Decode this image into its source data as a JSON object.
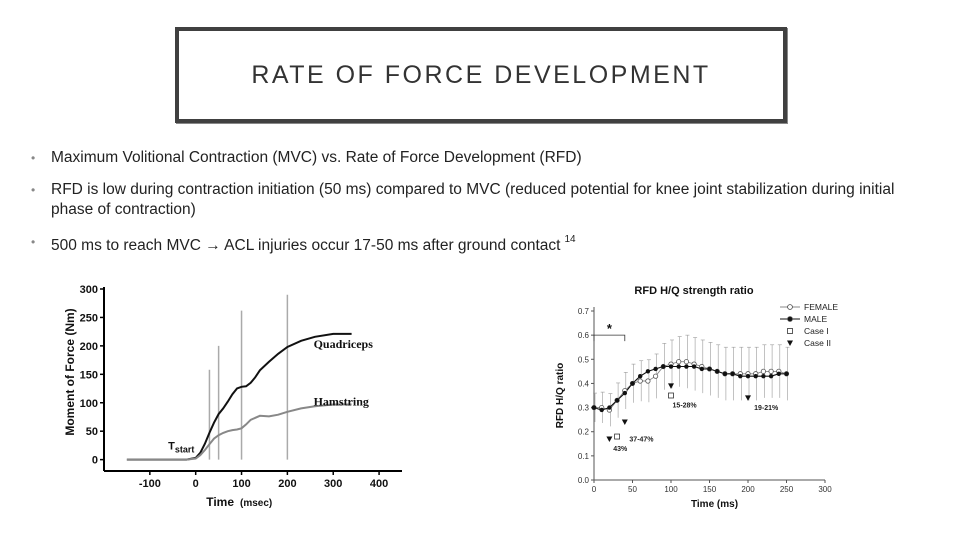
{
  "slide": {
    "title": "RATE OF FORCE DEVELOPMENT",
    "bullets": [
      {
        "text": "Maximum Volitional Contraction (MVC) vs. Rate of Force Development (RFD)"
      },
      {
        "text": "RFD is low during contraction initiation (50 ms) compared to MVC (reduced potential for knee joint stabilization during initial phase of contraction)"
      },
      {
        "text_before": "500 ms to reach MVC",
        "arrow": "→",
        "text_after": "ACL injuries occur 17-50 ms after ground contact",
        "superscript": "14"
      }
    ],
    "bullet_marker": "•"
  },
  "chart_data": [
    {
      "type": "line",
      "title": "",
      "xlabel": "Time",
      "xlabel_unit": "(msec)",
      "ylabel": "Moment of Force (Nm)",
      "xlim": [
        -200,
        450
      ],
      "ylim": [
        -20,
        300
      ],
      "xticks": [
        -100,
        0,
        100,
        200,
        300,
        400
      ],
      "yticks": [
        0,
        50,
        100,
        150,
        200,
        250,
        300
      ],
      "vertical_markers": [
        30,
        50,
        100,
        200
      ],
      "annotation": {
        "text": "T",
        "subscript": "start",
        "x": -60,
        "y": 18
      },
      "series": [
        {
          "name": "Quadriceps",
          "x": [
            -150,
            -20,
            0,
            10,
            20,
            30,
            40,
            50,
            60,
            70,
            80,
            90,
            100,
            110,
            120,
            130,
            140,
            160,
            180,
            200,
            230,
            260,
            300,
            340
          ],
          "y": [
            0,
            0,
            3,
            12,
            28,
            47,
            65,
            80,
            90,
            102,
            115,
            125,
            128,
            129,
            135,
            145,
            157,
            172,
            186,
            198,
            209,
            216,
            221,
            221
          ]
        },
        {
          "name": "Hamstring",
          "x": [
            -150,
            -20,
            0,
            10,
            20,
            30,
            40,
            50,
            60,
            70,
            80,
            90,
            100,
            110,
            120,
            140,
            160,
            180,
            200,
            230,
            260,
            300,
            340
          ],
          "y": [
            0,
            0,
            2,
            8,
            17,
            27,
            37,
            43,
            47,
            50,
            52,
            53,
            55,
            62,
            70,
            77,
            76,
            79,
            84,
            90,
            94,
            97,
            97
          ]
        }
      ]
    },
    {
      "type": "line",
      "title": "RFD H/Q strength ratio",
      "xlabel": "Time (ms)",
      "ylabel": "RFD H/Q ratio",
      "xlim": [
        0,
        300
      ],
      "ylim": [
        0,
        0.7
      ],
      "xticks": [
        0,
        50,
        100,
        150,
        200,
        250,
        300
      ],
      "yticks": [
        0.0,
        0.1,
        0.2,
        0.3,
        0.4,
        0.5,
        0.6,
        0.7
      ],
      "legend": [
        "FEMALE",
        "MALE",
        "Case I",
        "Case II"
      ],
      "legend_position": "top-right",
      "significance": {
        "text": "*",
        "x_range": [
          0,
          40
        ],
        "y": 0.6
      },
      "series": [
        {
          "name": "FEMALE",
          "marker": "open-circle",
          "x": [
            0,
            10,
            20,
            30,
            40,
            50,
            60,
            70,
            80,
            90,
            100,
            110,
            120,
            130,
            140,
            150,
            160,
            170,
            180,
            190,
            200,
            210,
            220,
            230,
            240,
            250
          ],
          "y": [
            0.3,
            0.3,
            0.29,
            0.33,
            0.37,
            0.4,
            0.41,
            0.41,
            0.43,
            0.47,
            0.48,
            0.49,
            0.49,
            0.48,
            0.47,
            0.46,
            0.45,
            0.44,
            0.44,
            0.44,
            0.44,
            0.44,
            0.45,
            0.45,
            0.45,
            0.44
          ]
        },
        {
          "name": "MALE",
          "marker": "filled-circle",
          "x": [
            0,
            10,
            20,
            30,
            40,
            50,
            60,
            70,
            80,
            90,
            100,
            110,
            120,
            130,
            140,
            150,
            160,
            170,
            180,
            190,
            200,
            210,
            220,
            230,
            240,
            250
          ],
          "y": [
            0.3,
            0.29,
            0.3,
            0.33,
            0.36,
            0.4,
            0.43,
            0.45,
            0.46,
            0.47,
            0.47,
            0.47,
            0.47,
            0.47,
            0.46,
            0.46,
            0.45,
            0.44,
            0.44,
            0.43,
            0.43,
            0.43,
            0.43,
            0.43,
            0.44,
            0.44
          ]
        },
        {
          "name": "Case I",
          "marker": "open-square",
          "x": [
            30,
            100
          ],
          "y": [
            0.18,
            0.35
          ]
        },
        {
          "name": "Case II",
          "marker": "filled-triangle-down",
          "x": [
            20,
            40,
            100,
            200
          ],
          "y": [
            0.17,
            0.24,
            0.39,
            0.34
          ]
        }
      ],
      "annotations": [
        {
          "text": "43%",
          "x": 25,
          "y": 0.12
        },
        {
          "text": "37-47%",
          "x": 46,
          "y": 0.16
        },
        {
          "text": "15-28%",
          "x": 102,
          "y": 0.3
        },
        {
          "text": "19-21%",
          "x": 208,
          "y": 0.29
        }
      ]
    }
  ]
}
